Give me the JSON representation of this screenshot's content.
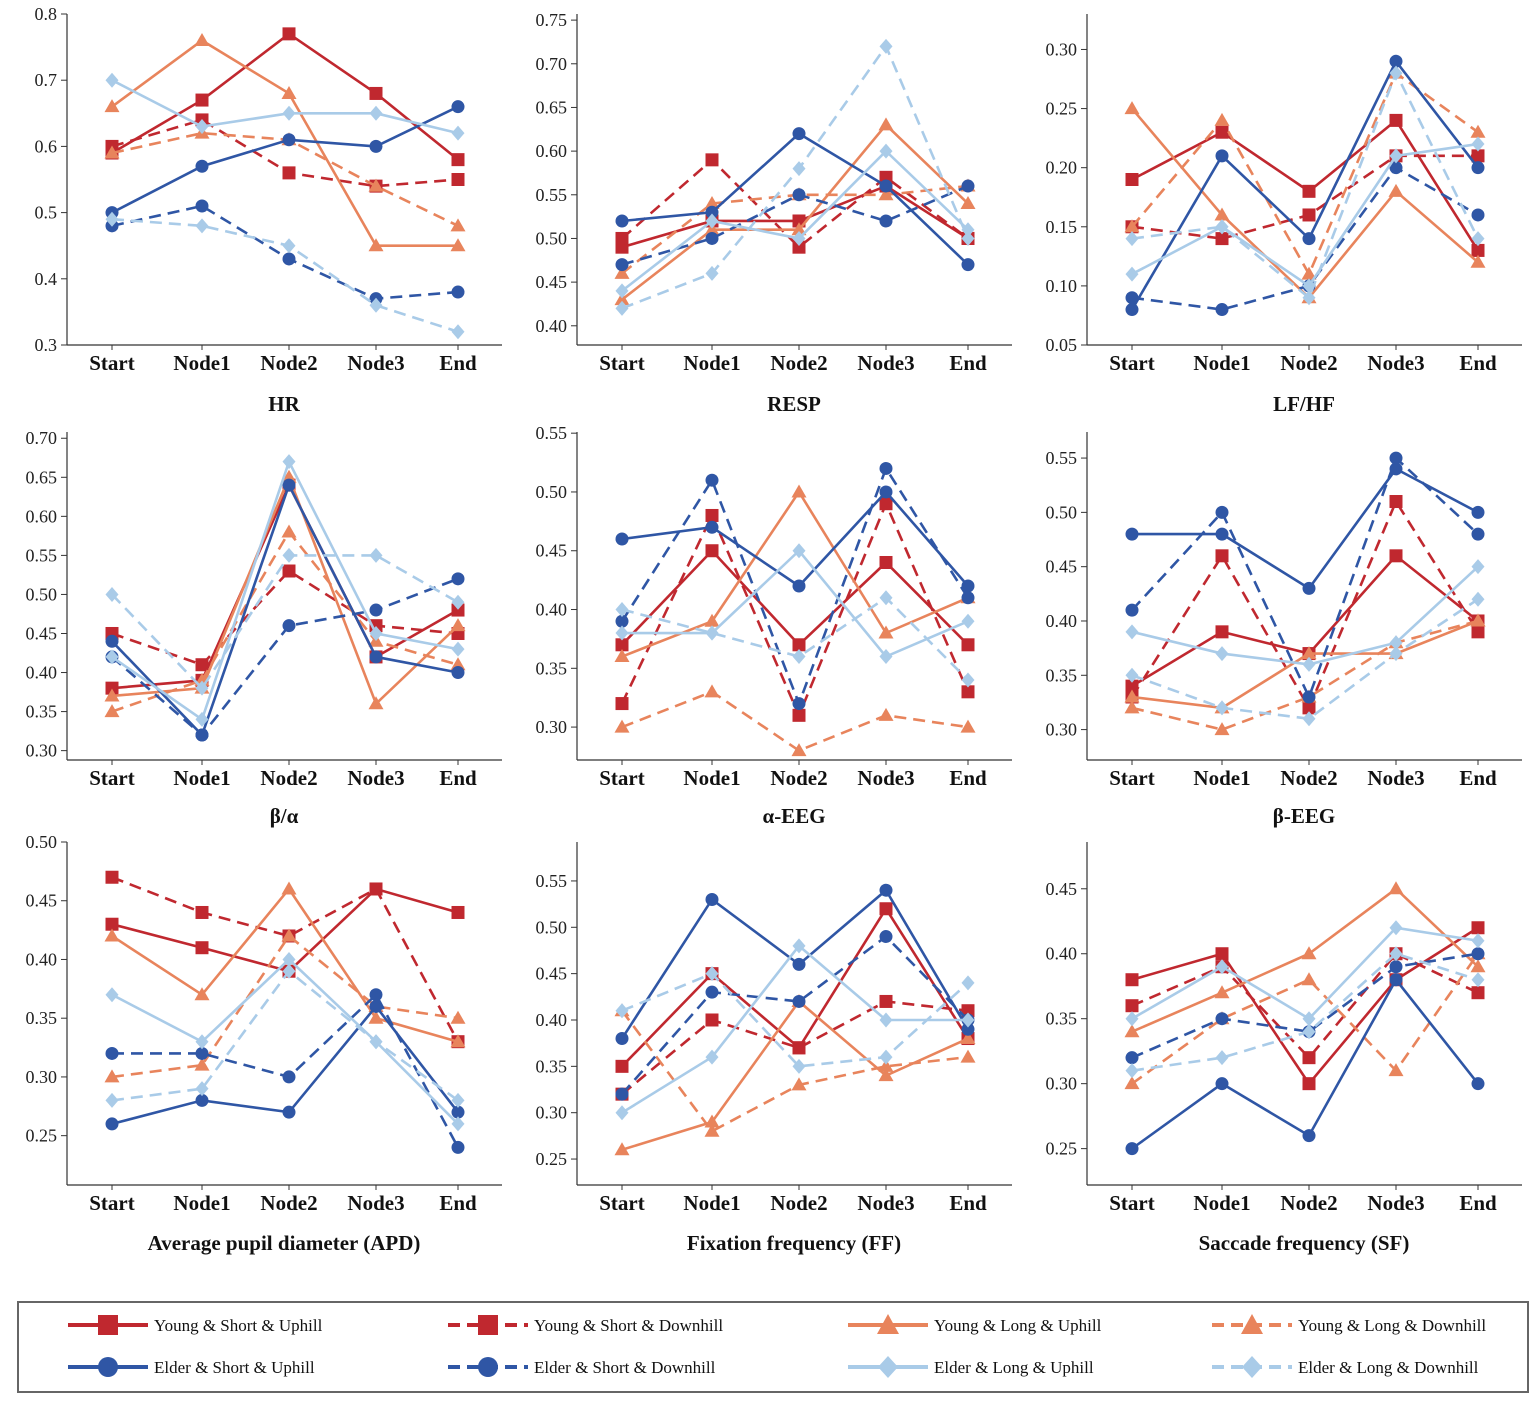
{
  "chart_data": [
    {
      "type": "line",
      "title": "HR",
      "categories": [
        "Start",
        "Node1",
        "Node2",
        "Node3",
        "End"
      ],
      "ylim": [
        0.3,
        0.8
      ],
      "yticks": [
        "0.3",
        "0.4",
        "0.5",
        "0.6",
        "0.7",
        "0.8"
      ],
      "series": [
        [
          0.59,
          0.67,
          0.77,
          0.68,
          0.58
        ],
        [
          0.6,
          0.64,
          0.56,
          0.54,
          0.55
        ],
        [
          0.66,
          0.76,
          0.68,
          0.45,
          0.45
        ],
        [
          0.59,
          0.62,
          0.61,
          0.54,
          0.48
        ],
        [
          0.5,
          0.57,
          0.61,
          0.6,
          0.66
        ],
        [
          0.48,
          0.51,
          0.43,
          0.37,
          0.38
        ],
        [
          0.7,
          0.63,
          0.65,
          0.65,
          0.62
        ],
        [
          0.49,
          0.48,
          0.45,
          0.36,
          0.32
        ]
      ]
    },
    {
      "type": "line",
      "title": "RESP",
      "categories": [
        "Start",
        "Node1",
        "Node2",
        "Node3",
        "End"
      ],
      "ylim": [
        0.378,
        0.757
      ],
      "yticks": [
        "0.40",
        "0.45",
        "0.50",
        "0.55",
        "0.60",
        "0.65",
        "0.70",
        "0.75"
      ],
      "series": [
        [
          0.49,
          0.52,
          0.52,
          0.56,
          0.5
        ],
        [
          0.5,
          0.59,
          0.49,
          0.57,
          0.5
        ],
        [
          0.43,
          0.51,
          0.51,
          0.63,
          0.54
        ],
        [
          0.46,
          0.54,
          0.55,
          0.55,
          0.56
        ],
        [
          0.52,
          0.53,
          0.62,
          0.56,
          0.47
        ],
        [
          0.47,
          0.5,
          0.55,
          0.52,
          0.56
        ],
        [
          0.44,
          0.52,
          0.5,
          0.6,
          0.51
        ],
        [
          0.42,
          0.46,
          0.58,
          0.72,
          0.5
        ]
      ]
    },
    {
      "type": "line",
      "title": "LF/HF",
      "categories": [
        "Start",
        "Node1",
        "Node2",
        "Node3",
        "End"
      ],
      "ylim": [
        0.05,
        0.33
      ],
      "yticks": [
        "0.05",
        "0.10",
        "0.15",
        "0.20",
        "0.25",
        "0.30"
      ],
      "series": [
        [
          0.19,
          0.23,
          0.18,
          0.24,
          0.13
        ],
        [
          0.15,
          0.14,
          0.16,
          0.21,
          0.21
        ],
        [
          0.25,
          0.16,
          0.09,
          0.18,
          0.12
        ],
        [
          0.15,
          0.24,
          0.11,
          0.28,
          0.23
        ],
        [
          0.08,
          0.21,
          0.14,
          0.29,
          0.2
        ],
        [
          0.09,
          0.08,
          0.1,
          0.2,
          0.16
        ],
        [
          0.11,
          0.15,
          0.1,
          0.21,
          0.22
        ],
        [
          0.14,
          0.15,
          0.09,
          0.28,
          0.14
        ]
      ]
    },
    {
      "type": "line",
      "title": "β/α",
      "categories": [
        "Start",
        "Node1",
        "Node2",
        "Node3",
        "End"
      ],
      "ylim": [
        0.288,
        0.708
      ],
      "yticks": [
        "0.30",
        "0.35",
        "0.40",
        "0.45",
        "0.50",
        "0.55",
        "0.60",
        "0.65",
        "0.70"
      ],
      "series": [
        [
          0.38,
          0.39,
          0.64,
          0.42,
          0.48
        ],
        [
          0.45,
          0.41,
          0.53,
          0.46,
          0.45
        ],
        [
          0.37,
          0.38,
          0.65,
          0.36,
          0.46
        ],
        [
          0.35,
          0.39,
          0.58,
          0.44,
          0.41
        ],
        [
          0.44,
          0.32,
          0.64,
          0.42,
          0.4
        ],
        [
          0.42,
          0.32,
          0.46,
          0.48,
          0.52
        ],
        [
          0.42,
          0.34,
          0.67,
          0.45,
          0.43
        ],
        [
          0.5,
          0.38,
          0.55,
          0.55,
          0.49
        ]
      ]
    },
    {
      "type": "line",
      "title": "α-EEG",
      "categories": [
        "Start",
        "Node1",
        "Node2",
        "Node3",
        "End"
      ],
      "ylim": [
        0.272,
        0.551
      ],
      "yticks": [
        "0.30",
        "0.35",
        "0.40",
        "0.45",
        "0.50",
        "0.55"
      ],
      "series": [
        [
          0.37,
          0.45,
          0.37,
          0.44,
          0.37
        ],
        [
          0.32,
          0.48,
          0.31,
          0.49,
          0.33
        ],
        [
          0.36,
          0.39,
          0.5,
          0.38,
          0.41
        ],
        [
          0.3,
          0.33,
          0.28,
          0.31,
          0.3
        ],
        [
          0.46,
          0.47,
          0.42,
          0.5,
          0.42
        ],
        [
          0.39,
          0.51,
          0.32,
          0.52,
          0.41
        ],
        [
          0.38,
          0.38,
          0.45,
          0.36,
          0.39
        ],
        [
          0.4,
          0.38,
          0.36,
          0.41,
          0.34
        ]
      ]
    },
    {
      "type": "line",
      "title": "β-EEG",
      "categories": [
        "Start",
        "Node1",
        "Node2",
        "Node3",
        "End"
      ],
      "ylim": [
        0.272,
        0.574
      ],
      "yticks": [
        "0.30",
        "0.35",
        "0.40",
        "0.45",
        "0.50",
        "0.55"
      ],
      "series": [
        [
          0.34,
          0.39,
          0.37,
          0.46,
          0.4
        ],
        [
          0.33,
          0.46,
          0.32,
          0.51,
          0.39
        ],
        [
          0.33,
          0.32,
          0.37,
          0.37,
          0.4
        ],
        [
          0.32,
          0.3,
          0.33,
          0.38,
          0.4
        ],
        [
          0.48,
          0.48,
          0.43,
          0.54,
          0.5
        ],
        [
          0.41,
          0.5,
          0.33,
          0.55,
          0.48
        ],
        [
          0.39,
          0.37,
          0.36,
          0.38,
          0.45
        ],
        [
          0.35,
          0.32,
          0.31,
          0.37,
          0.42
        ]
      ]
    },
    {
      "type": "line",
      "title": "Average pupil diameter (APD)",
      "categories": [
        "Start",
        "Node1",
        "Node2",
        "Node3",
        "End"
      ],
      "ylim": [
        0.208,
        0.5
      ],
      "yticks": [
        "0.25",
        "0.30",
        "0.35",
        "0.40",
        "0.45",
        "0.50"
      ],
      "series": [
        [
          0.43,
          0.41,
          0.39,
          0.46,
          0.44
        ],
        [
          0.47,
          0.44,
          0.42,
          0.46,
          0.33
        ],
        [
          0.42,
          0.37,
          0.46,
          0.35,
          0.33
        ],
        [
          0.3,
          0.31,
          0.42,
          0.36,
          0.35
        ],
        [
          0.26,
          0.28,
          0.27,
          0.36,
          0.27
        ],
        [
          0.32,
          0.32,
          0.3,
          0.37,
          0.24
        ],
        [
          0.37,
          0.33,
          0.4,
          0.33,
          0.26
        ],
        [
          0.28,
          0.29,
          0.39,
          0.33,
          0.28
        ]
      ]
    },
    {
      "type": "line",
      "title": "Fixation frequency (FF)",
      "categories": [
        "Start",
        "Node1",
        "Node2",
        "Node3",
        "End"
      ],
      "ylim": [
        0.222,
        0.592
      ],
      "yticks": [
        "0.25",
        "0.30",
        "0.35",
        "0.40",
        "0.45",
        "0.50",
        "0.55"
      ],
      "series": [
        [
          0.35,
          0.45,
          0.37,
          0.52,
          0.38
        ],
        [
          0.32,
          0.4,
          0.37,
          0.42,
          0.41
        ],
        [
          0.26,
          0.29,
          0.42,
          0.34,
          0.38
        ],
        [
          0.41,
          0.28,
          0.33,
          0.35,
          0.36
        ],
        [
          0.38,
          0.53,
          0.46,
          0.54,
          0.39
        ],
        [
          0.32,
          0.43,
          0.42,
          0.49,
          0.4
        ],
        [
          0.3,
          0.36,
          0.48,
          0.4,
          0.4
        ],
        [
          0.41,
          0.45,
          0.35,
          0.36,
          0.44
        ]
      ]
    },
    {
      "type": "line",
      "title": "Saccade frequency  (SF)",
      "categories": [
        "Start",
        "Node1",
        "Node2",
        "Node3",
        "End"
      ],
      "ylim": [
        0.222,
        0.486
      ],
      "yticks": [
        "0.25",
        "0.30",
        "0.35",
        "0.40",
        "0.45"
      ],
      "series": [
        [
          0.38,
          0.4,
          0.3,
          0.38,
          0.42
        ],
        [
          0.36,
          0.39,
          0.32,
          0.4,
          0.37
        ],
        [
          0.34,
          0.37,
          0.4,
          0.45,
          0.39
        ],
        [
          0.3,
          0.35,
          0.38,
          0.31,
          0.4
        ],
        [
          0.25,
          0.3,
          0.26,
          0.38,
          0.3
        ],
        [
          0.32,
          0.35,
          0.34,
          0.39,
          0.4
        ],
        [
          0.35,
          0.39,
          0.35,
          0.42,
          0.41
        ],
        [
          0.31,
          0.32,
          0.34,
          0.4,
          0.38
        ]
      ]
    }
  ],
  "legend": {
    "placement": "bottom",
    "entries": [
      {
        "name": "Young & Short & Uphill",
        "color": "#c0282f",
        "dash": false,
        "marker": "square"
      },
      {
        "name": "Young & Short & Downhill",
        "color": "#c0282f",
        "dash": true,
        "marker": "square"
      },
      {
        "name": "Young & Long & Uphill",
        "color": "#e8845c",
        "dash": false,
        "marker": "triangle"
      },
      {
        "name": "Young & Long & Downhill",
        "color": "#e8845c",
        "dash": true,
        "marker": "triangle"
      },
      {
        "name": "Elder & Short & Uphill",
        "color": "#2f56a5",
        "dash": false,
        "marker": "circle"
      },
      {
        "name": "Elder & Short & Downhill",
        "color": "#2f56a5",
        "dash": true,
        "marker": "circle"
      },
      {
        "name": "Elder & Long & Uphill",
        "color": "#a9cbe8",
        "dash": false,
        "marker": "diamond"
      },
      {
        "name": "Elder & Long & Downhill",
        "color": "#a9cbe8",
        "dash": true,
        "marker": "diamond"
      }
    ]
  }
}
